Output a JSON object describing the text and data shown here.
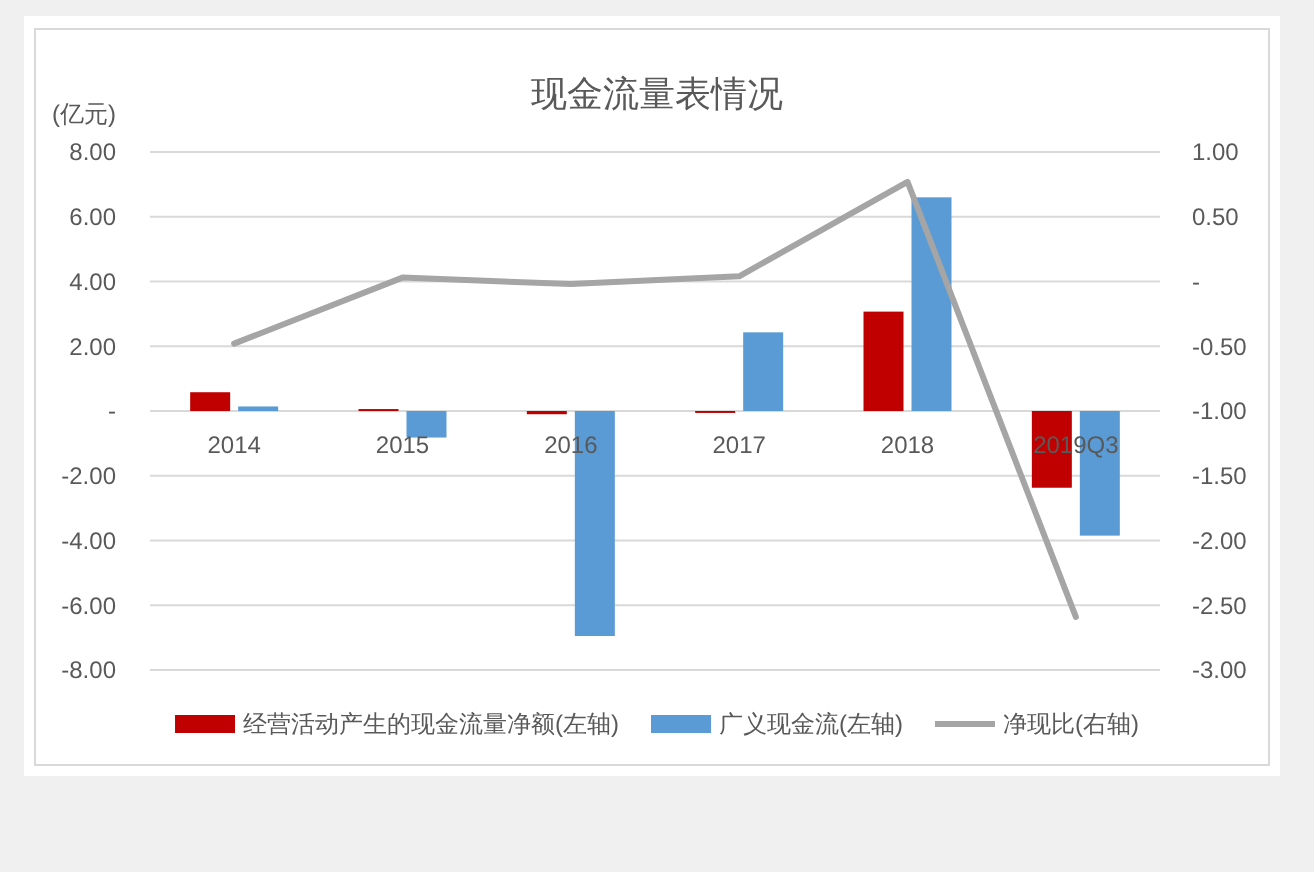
{
  "chart_data": {
    "type": "bar",
    "title": "现金流量表情况",
    "ylabel": "(亿元)",
    "categories": [
      "2014",
      "2015",
      "2016",
      "2017",
      "2018",
      "2019Q3"
    ],
    "series": [
      {
        "name": "经营活动产生的现金流量净额(左轴)",
        "color": "#c00000",
        "values": [
          0.58,
          0.06,
          -0.1,
          -0.06,
          3.07,
          -2.37
        ]
      },
      {
        "name": "广义现金流(左轴)",
        "color": "#5b9bd5",
        "values": [
          0.14,
          -0.82,
          -6.95,
          2.43,
          6.6,
          -3.85
        ]
      },
      {
        "name": "净现比(右轴)",
        "type": "line",
        "axis": "y2",
        "color": "#a5a5a5",
        "values": [
          -0.48,
          0.03,
          -0.02,
          0.04,
          0.77,
          -2.59
        ]
      }
    ],
    "ylim": [
      -8,
      8
    ],
    "yticks": [
      {
        "value": 8,
        "label": "8.00"
      },
      {
        "value": 6,
        "label": "6.00"
      },
      {
        "value": 4,
        "label": "4.00"
      },
      {
        "value": 2,
        "label": "2.00"
      },
      {
        "value": 0,
        "label": "-"
      },
      {
        "value": -2,
        "label": "-2.00"
      },
      {
        "value": -4,
        "label": "-4.00"
      },
      {
        "value": -6,
        "label": "-6.00"
      },
      {
        "value": -8,
        "label": "-8.00"
      }
    ],
    "y2lim": [
      -3,
      1
    ],
    "y2ticks": [
      {
        "value": 1,
        "label": "1.00"
      },
      {
        "value": 0.5,
        "label": "0.50"
      },
      {
        "value": 0,
        "label": "-"
      },
      {
        "value": -0.5,
        "label": "-0.50"
      },
      {
        "value": -1,
        "label": "-1.00"
      },
      {
        "value": -1.5,
        "label": "-1.50"
      },
      {
        "value": -2,
        "label": "-2.00"
      },
      {
        "value": -2.5,
        "label": "-2.50"
      },
      {
        "value": -3,
        "label": "-3.00"
      }
    ],
    "grid": "y",
    "legend": "bottom"
  }
}
